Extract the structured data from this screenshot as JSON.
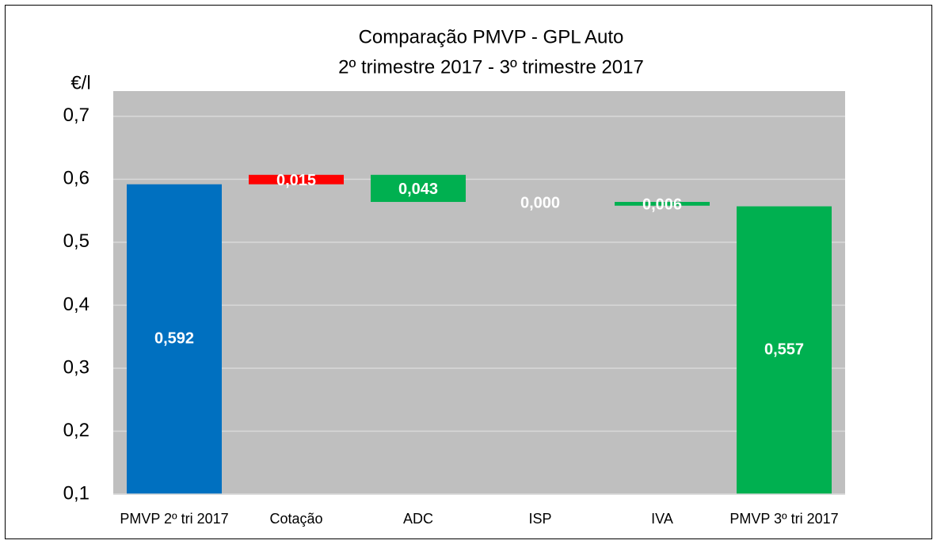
{
  "chart_data": {
    "type": "waterfall",
    "title": [
      "Comparação PMVP - GPL Auto",
      "2º trimestre 2017 - 3º trimestre 2017"
    ],
    "y_label": "€/l",
    "categories": [
      "PMVP 2º tri 2017",
      "Cotação",
      "ADC",
      "ISP",
      "IVA",
      "PMVP 3º tri 2017"
    ],
    "values": [
      0.592,
      0.015,
      -0.043,
      0,
      -0.006,
      0.557
    ],
    "value_labels": [
      "0,592",
      "0,015",
      "0,043",
      "0,000",
      "0,006",
      "0,557"
    ],
    "colors": [
      "#0070c0",
      "#ff0000",
      "#00b050",
      "#00b050",
      "#00b050",
      "#00b050"
    ],
    "ylim": [
      0.1,
      0.74
    ],
    "yticks": [
      {
        "value": 0.1,
        "label": "0,1"
      },
      {
        "value": 0.2,
        "label": "0,2"
      },
      {
        "value": 0.3,
        "label": "0,3"
      },
      {
        "value": 0.4,
        "label": "0,4"
      },
      {
        "value": 0.5,
        "label": "0,5"
      },
      {
        "value": 0.6,
        "label": "0,6"
      },
      {
        "value": 0.7,
        "label": "0,7"
      }
    ],
    "grid": true
  }
}
